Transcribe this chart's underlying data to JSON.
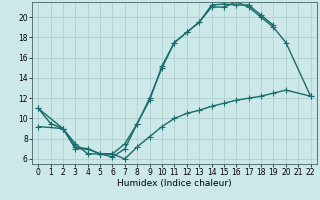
{
  "bg_color": "#cde8e8",
  "grid_color": "#aacccc",
  "line_color": "#1a6b6b",
  "linewidth": 1.0,
  "markersize": 4,
  "xlabel": "Humidex (Indice chaleur)",
  "xlabel_fontsize": 6.5,
  "tick_fontsize": 5.5,
  "xlim": [
    -0.5,
    22.5
  ],
  "ylim": [
    5.5,
    21.5
  ],
  "xticks": [
    0,
    1,
    2,
    3,
    4,
    5,
    6,
    7,
    8,
    9,
    10,
    11,
    12,
    13,
    14,
    15,
    16,
    17,
    18,
    19,
    20,
    21,
    22
  ],
  "yticks": [
    6,
    8,
    10,
    12,
    14,
    16,
    18,
    20
  ],
  "line1_x": [
    0,
    1,
    2,
    3,
    4,
    5,
    6,
    7,
    8,
    9,
    10,
    11,
    12,
    13,
    14,
    15,
    16,
    17,
    18,
    19
  ],
  "line1_y": [
    11,
    9.5,
    9,
    7,
    7,
    6.5,
    6.2,
    7,
    9.5,
    11.8,
    15.2,
    17.5,
    18.5,
    19.5,
    21.2,
    21.3,
    21.2,
    21.2,
    20.2,
    19.2
  ],
  "line2_x": [
    0,
    2,
    3,
    4,
    5,
    6,
    7,
    8,
    9,
    10,
    11,
    12,
    13,
    14,
    15,
    16,
    17,
    18,
    19,
    20,
    22
  ],
  "line2_y": [
    11,
    9,
    7.2,
    7,
    6.5,
    6.5,
    7.5,
    9.5,
    12,
    15,
    17.5,
    18.5,
    19.5,
    21,
    21,
    21.5,
    21.0,
    20,
    19.0,
    17.5,
    12.2
  ],
  "line3_x": [
    0,
    2,
    3,
    4,
    5,
    6,
    7,
    8,
    9,
    10,
    11,
    12,
    13,
    14,
    15,
    16,
    17,
    18,
    19,
    20,
    22
  ],
  "line3_y": [
    9.2,
    9.0,
    7.5,
    6.5,
    6.5,
    6.5,
    6.0,
    7.2,
    8.2,
    9.2,
    10.0,
    10.5,
    10.8,
    11.2,
    11.5,
    11.8,
    12.0,
    12.2,
    12.5,
    12.8,
    12.2
  ]
}
